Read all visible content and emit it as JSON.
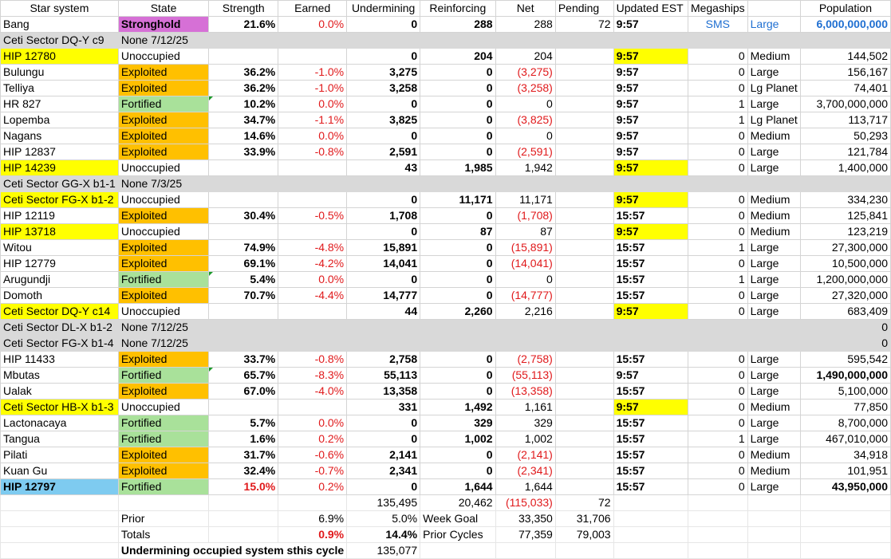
{
  "headers": [
    "Star system",
    "State",
    "Strength",
    "Earned",
    "Undermining",
    "Reinforcing",
    "Net",
    "Pending",
    "Updated EST",
    "Megaships",
    "",
    "Population"
  ],
  "rows": [
    {
      "kind": "data",
      "sys": "Bang",
      "sysStyle": "",
      "state": "Stronghold",
      "stateStyle": "mag",
      "str": "21.6%",
      "earned": "0.0%",
      "under": "0",
      "reinf": "288",
      "net": "288",
      "netRed": false,
      "pending": "72",
      "upd": "9:57",
      "updStyle": "",
      "mega": "SMS",
      "size": "Large",
      "pop": "6,000,000,000",
      "special": "bang"
    },
    {
      "kind": "gray",
      "sys": "Ceti Sector DQ-Y c9",
      "note": "None 7/12/25",
      "pop": ""
    },
    {
      "kind": "data",
      "sys": "HIP 12780",
      "sysStyle": "yel",
      "state": "Unoccupied",
      "stateStyle": "",
      "str": "",
      "earned": "",
      "under": "0",
      "reinf": "204",
      "net": "204",
      "netRed": false,
      "pending": "",
      "upd": "9:57",
      "updStyle": "yel",
      "mega": "0",
      "size": "Medium",
      "pop": "144,502"
    },
    {
      "kind": "data",
      "sys": "Bulungu",
      "sysStyle": "",
      "state": "Exploited",
      "stateStyle": "org",
      "str": "36.2%",
      "earned": "-1.0%",
      "under": "3,275",
      "reinf": "0",
      "net": "(3,275)",
      "netRed": true,
      "pending": "",
      "upd": "9:57",
      "updStyle": "",
      "mega": "0",
      "size": "Large",
      "pop": "156,167"
    },
    {
      "kind": "data",
      "sys": "Telliya",
      "sysStyle": "",
      "state": "Exploited",
      "stateStyle": "org",
      "str": "36.2%",
      "earned": "-1.0%",
      "under": "3,258",
      "reinf": "0",
      "net": "(3,258)",
      "netRed": true,
      "pending": "",
      "upd": "9:57",
      "updStyle": "",
      "mega": "0",
      "size": "Lg Planet",
      "pop": "74,401"
    },
    {
      "kind": "data",
      "sys": "HR 827",
      "sysStyle": "",
      "state": "Fortified",
      "stateStyle": "grn",
      "str": "10.2%",
      "strTri": true,
      "earned": "0.0%",
      "under": "0",
      "reinf": "0",
      "net": "0",
      "netRed": false,
      "pending": "",
      "upd": "9:57",
      "updStyle": "",
      "mega": "1",
      "size": "Large",
      "pop": "3,700,000,000"
    },
    {
      "kind": "data",
      "sys": "Lopemba",
      "sysStyle": "",
      "state": "Exploited",
      "stateStyle": "org",
      "str": "34.7%",
      "earned": "-1.1%",
      "under": "3,825",
      "reinf": "0",
      "net": "(3,825)",
      "netRed": true,
      "pending": "",
      "upd": "9:57",
      "updStyle": "",
      "mega": "1",
      "size": "Lg Planet",
      "pop": "113,717"
    },
    {
      "kind": "data",
      "sys": "Nagans",
      "sysStyle": "",
      "state": "Exploited",
      "stateStyle": "org",
      "str": "14.6%",
      "earned": "0.0%",
      "under": "0",
      "reinf": "0",
      "net": "0",
      "netRed": false,
      "pending": "",
      "upd": "9:57",
      "updStyle": "",
      "mega": "0",
      "size": "Medium",
      "pop": "50,293"
    },
    {
      "kind": "data",
      "sys": "HIP 12837",
      "sysStyle": "",
      "state": "Exploited",
      "stateStyle": "org",
      "str": "33.9%",
      "earned": "-0.8%",
      "under": "2,591",
      "reinf": "0",
      "net": "(2,591)",
      "netRed": true,
      "pending": "",
      "upd": "9:57",
      "updStyle": "",
      "mega": "0",
      "size": "Large",
      "pop": "121,784"
    },
    {
      "kind": "data",
      "sys": "HIP 14239",
      "sysStyle": "yel",
      "state": "Unoccupied",
      "stateStyle": "",
      "str": "",
      "earned": "",
      "under": "43",
      "reinf": "1,985",
      "net": "1,942",
      "netRed": false,
      "pending": "",
      "upd": "9:57",
      "updStyle": "yel",
      "mega": "0",
      "size": "Large",
      "pop": "1,400,000"
    },
    {
      "kind": "gray",
      "sys": "Ceti Sector GG-X b1-1",
      "note": "None 7/3/25",
      "pop": ""
    },
    {
      "kind": "data",
      "sys": "Ceti Sector FG-X b1-2",
      "sysStyle": "yel",
      "state": "Unoccupied",
      "stateStyle": "",
      "str": "",
      "earned": "",
      "under": "0",
      "reinf": "11,171",
      "net": "11,171",
      "netRed": false,
      "pending": "",
      "upd": "9:57",
      "updStyle": "yel",
      "mega": "0",
      "size": "Medium",
      "pop": "334,230"
    },
    {
      "kind": "data",
      "sys": "HIP 12119",
      "sysStyle": "",
      "state": "Exploited",
      "stateStyle": "org",
      "str": "30.4%",
      "earned": "-0.5%",
      "under": "1,708",
      "reinf": "0",
      "net": "(1,708)",
      "netRed": true,
      "pending": "",
      "upd": "15:57",
      "updStyle": "",
      "mega": "0",
      "size": "Medium",
      "pop": "125,841"
    },
    {
      "kind": "data",
      "sys": "HIP 13718",
      "sysStyle": "yel",
      "state": "Unoccupied",
      "stateStyle": "",
      "str": "",
      "earned": "",
      "under": "0",
      "reinf": "87",
      "net": "87",
      "netRed": false,
      "pending": "",
      "upd": "9:57",
      "updStyle": "yel",
      "mega": "0",
      "size": "Medium",
      "pop": "123,219"
    },
    {
      "kind": "data",
      "sys": "Witou",
      "sysStyle": "",
      "state": "Exploited",
      "stateStyle": "org",
      "str": "74.9%",
      "earned": "-4.8%",
      "under": "15,891",
      "reinf": "0",
      "net": "(15,891)",
      "netRed": true,
      "pending": "",
      "upd": "15:57",
      "updStyle": "",
      "mega": "1",
      "size": "Large",
      "pop": "27,300,000"
    },
    {
      "kind": "data",
      "sys": "HIP 12779",
      "sysStyle": "",
      "state": "Exploited",
      "stateStyle": "org",
      "str": "69.1%",
      "earned": "-4.2%",
      "under": "14,041",
      "reinf": "0",
      "net": "(14,041)",
      "netRed": true,
      "pending": "",
      "upd": "15:57",
      "updStyle": "",
      "mega": "0",
      "size": "Large",
      "pop": "10,500,000"
    },
    {
      "kind": "data",
      "sys": "Arugundji",
      "sysStyle": "",
      "state": "Fortified",
      "stateStyle": "grn",
      "str": "5.4%",
      "strTri": true,
      "earned": "0.0%",
      "under": "0",
      "reinf": "0",
      "net": "0",
      "netRed": false,
      "pending": "",
      "upd": "15:57",
      "updStyle": "",
      "mega": "1",
      "size": "Large",
      "pop": "1,200,000,000"
    },
    {
      "kind": "data",
      "sys": "Domoth",
      "sysStyle": "",
      "state": "Exploited",
      "stateStyle": "org",
      "str": "70.7%",
      "earned": "-4.4%",
      "under": "14,777",
      "reinf": "0",
      "net": "(14,777)",
      "netRed": true,
      "pending": "",
      "upd": "15:57",
      "updStyle": "",
      "mega": "0",
      "size": "Large",
      "pop": "27,320,000"
    },
    {
      "kind": "data",
      "sys": "Ceti Sector DQ-Y c14",
      "sysStyle": "yel",
      "state": "Unoccupied",
      "stateStyle": "",
      "str": "",
      "earned": "",
      "under": "44",
      "reinf": "2,260",
      "net": "2,216",
      "netRed": false,
      "pending": "",
      "upd": "9:57",
      "updStyle": "yel",
      "mega": "0",
      "size": "Large",
      "pop": "683,409"
    },
    {
      "kind": "gray",
      "sys": "Ceti Sector DL-X b1-2",
      "note": "None 7/12/25",
      "pop": "0"
    },
    {
      "kind": "gray",
      "sys": "Ceti Sector FG-X b1-4",
      "note": "None 7/12/25",
      "pop": "0"
    },
    {
      "kind": "data",
      "sys": "HIP 11433",
      "sysStyle": "",
      "state": "Exploited",
      "stateStyle": "org",
      "str": "33.7%",
      "earned": "-0.8%",
      "under": "2,758",
      "reinf": "0",
      "net": "(2,758)",
      "netRed": true,
      "pending": "",
      "upd": "15:57",
      "updStyle": "",
      "mega": "0",
      "size": "Large",
      "pop": "595,542"
    },
    {
      "kind": "data",
      "sys": "Mbutas",
      "sysStyle": "",
      "state": "Fortified",
      "stateStyle": "grn",
      "str": "65.7%",
      "strTri": true,
      "earned": "-8.3%",
      "under": "55,113",
      "reinf": "0",
      "net": "(55,113)",
      "netRed": true,
      "pending": "",
      "upd": "9:57",
      "updStyle": "",
      "mega": "0",
      "size": "Large",
      "pop": "1,490,000,000",
      "popBold": true
    },
    {
      "kind": "data",
      "sys": "Ualak",
      "sysStyle": "",
      "state": "Exploited",
      "stateStyle": "org",
      "str": "67.0%",
      "earned": "-4.0%",
      "under": "13,358",
      "reinf": "0",
      "net": "(13,358)",
      "netRed": true,
      "pending": "",
      "upd": "15:57",
      "updStyle": "",
      "mega": "0",
      "size": "Large",
      "pop": "5,100,000"
    },
    {
      "kind": "data",
      "sys": "Ceti Sector HB-X b1-3",
      "sysStyle": "yel",
      "state": "Unoccupied",
      "stateStyle": "",
      "str": "",
      "earned": "",
      "under": "331",
      "reinf": "1,492",
      "net": "1,161",
      "netRed": false,
      "pending": "",
      "upd": "9:57",
      "updStyle": "yel",
      "mega": "0",
      "size": "Medium",
      "pop": "77,850"
    },
    {
      "kind": "data",
      "sys": "Lactonacaya",
      "sysStyle": "",
      "state": "Fortified",
      "stateStyle": "grn",
      "str": "5.7%",
      "earned": "0.0%",
      "under": "0",
      "reinf": "329",
      "net": "329",
      "netRed": false,
      "pending": "",
      "upd": "15:57",
      "updStyle": "",
      "mega": "0",
      "size": "Large",
      "pop": "8,700,000"
    },
    {
      "kind": "data",
      "sys": "Tangua",
      "sysStyle": "",
      "state": "Fortified",
      "stateStyle": "grn",
      "str": "1.6%",
      "earned": "0.2%",
      "under": "0",
      "reinf": "1,002",
      "net": "1,002",
      "netRed": false,
      "pending": "",
      "upd": "15:57",
      "updStyle": "",
      "mega": "1",
      "size": "Large",
      "pop": "467,010,000"
    },
    {
      "kind": "data",
      "sys": "Pilati",
      "sysStyle": "",
      "state": "Exploited",
      "stateStyle": "org",
      "str": "31.7%",
      "earned": "-0.6%",
      "under": "2,141",
      "reinf": "0",
      "net": "(2,141)",
      "netRed": true,
      "pending": "",
      "upd": "15:57",
      "updStyle": "",
      "mega": "0",
      "size": "Medium",
      "pop": "34,918"
    },
    {
      "kind": "data",
      "sys": "Kuan Gu",
      "sysStyle": "",
      "state": "Exploited",
      "stateStyle": "org",
      "str": "32.4%",
      "earned": "-0.7%",
      "under": "2,341",
      "reinf": "0",
      "net": "(2,341)",
      "netRed": true,
      "pending": "",
      "upd": "15:57",
      "updStyle": "",
      "mega": "0",
      "size": "Medium",
      "pop": "101,951"
    },
    {
      "kind": "data",
      "sys": "HIP 12797",
      "sysStyle": "sky",
      "sysBold": true,
      "state": "Fortified",
      "stateStyle": "grn",
      "str": "15.0%",
      "strRed": true,
      "earned": "0.2%",
      "under": "0",
      "reinf": "1,644",
      "net": "1,644",
      "netRed": false,
      "pending": "",
      "upd": "15:57",
      "updStyle": "",
      "mega": "0",
      "size": "Large",
      "pop": "43,950,000",
      "popBold": true
    }
  ],
  "summary": {
    "totals_row": {
      "under": "135,495",
      "reinf": "20,462",
      "net": "(115,033)",
      "pending": "72"
    },
    "prior_row": {
      "label": "Prior",
      "earned": "6.9%",
      "under": "5.0%",
      "reinf_label": "Week Goal",
      "net": "33,350",
      "pending": "31,706"
    },
    "totals2_row": {
      "label": "Totals",
      "earned": "0.9%",
      "under": "14.4%",
      "reinf_label": "Prior Cycles",
      "net": "77,359",
      "pending": "79,003"
    },
    "undermining_row": {
      "label": "Undermining occupied system sthis cycle",
      "value": "135,077"
    }
  },
  "colors": {
    "red": "#e0191b",
    "yellow": "#ffff00",
    "orange": "#ffc000",
    "green": "#a9e19a",
    "magenta": "#d670d6",
    "sky": "#7ecbf0",
    "gray": "#d9d9d9",
    "blue": "#1f6fd1"
  }
}
